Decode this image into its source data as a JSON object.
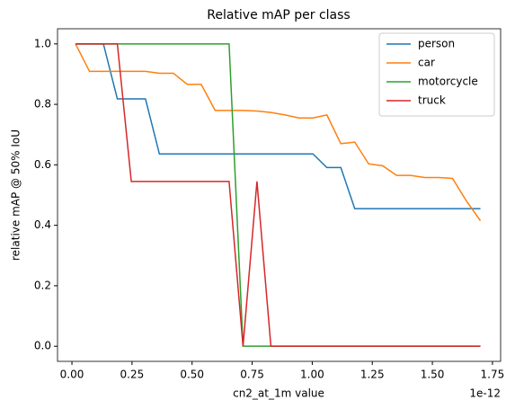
{
  "chart_data": {
    "type": "line",
    "title": "Relative mAP per class",
    "xlabel": "cn2_at_1m value",
    "ylabel": "relative mAP @ 50% IoU",
    "x_offset_text": "1e-12",
    "x": [
      0.015,
      0.073,
      0.131,
      0.189,
      0.247,
      0.306,
      0.364,
      0.422,
      0.48,
      0.538,
      0.596,
      0.654,
      0.712,
      0.77,
      0.828,
      0.887,
      0.945,
      1.003,
      1.061,
      1.119,
      1.177,
      1.235,
      1.293,
      1.351,
      1.409,
      1.468,
      1.526,
      1.584,
      1.642,
      1.7
    ],
    "series": [
      {
        "name": "person",
        "color": "#1f77b4",
        "values": [
          1,
          1,
          1,
          0.818,
          0.818,
          0.818,
          0.636,
          0.636,
          0.636,
          0.636,
          0.636,
          0.636,
          0.636,
          0.636,
          0.636,
          0.636,
          0.636,
          0.636,
          0.591,
          0.591,
          0.455,
          0.455,
          0.455,
          0.455,
          0.455,
          0.455,
          0.455,
          0.455,
          0.455,
          0.455
        ]
      },
      {
        "name": "car",
        "color": "#ff7f0e",
        "values": [
          1,
          0.909,
          0.909,
          0.909,
          0.909,
          0.909,
          0.903,
          0.903,
          0.866,
          0.866,
          0.78,
          0.78,
          0.78,
          0.778,
          0.773,
          0.765,
          0.755,
          0.755,
          0.765,
          0.67,
          0.675,
          0.603,
          0.597,
          0.565,
          0.565,
          0.558,
          0.558,
          0.555,
          0.48,
          0.415
        ]
      },
      {
        "name": "motorcycle",
        "color": "#2ca02c",
        "values": [
          1,
          1,
          1,
          1,
          1,
          1,
          1,
          1,
          1,
          1,
          1,
          1,
          0,
          0,
          0,
          0,
          0,
          0,
          0,
          0,
          0,
          0,
          0,
          0,
          0,
          0,
          0,
          0,
          0,
          0
        ]
      },
      {
        "name": "truck",
        "color": "#d62728",
        "values": [
          1,
          1,
          1,
          1,
          0.545,
          0.545,
          0.545,
          0.545,
          0.545,
          0.545,
          0.545,
          0.545,
          0,
          0.545,
          0,
          0,
          0,
          0,
          0,
          0,
          0,
          0,
          0,
          0,
          0,
          0,
          0,
          0,
          0,
          0
        ]
      }
    ],
    "xlim": [
      -0.06,
      1.784
    ],
    "ylim": [
      -0.05,
      1.05
    ],
    "xticks": [
      {
        "value": 0,
        "label": "0.00"
      },
      {
        "value": 0.25,
        "label": "0.25"
      },
      {
        "value": 0.5,
        "label": "0.50"
      },
      {
        "value": 0.75,
        "label": "0.75"
      },
      {
        "value": 1,
        "label": "1.00"
      },
      {
        "value": 1.25,
        "label": "1.25"
      },
      {
        "value": 1.5,
        "label": "1.50"
      },
      {
        "value": 1.75,
        "label": "1.75"
      }
    ],
    "yticks": [
      {
        "value": 0,
        "label": "0.0"
      },
      {
        "value": 0.2,
        "label": "0.2"
      },
      {
        "value": 0.4,
        "label": "0.4"
      },
      {
        "value": 0.6,
        "label": "0.6"
      },
      {
        "value": 0.8,
        "label": "0.8"
      },
      {
        "value": 1,
        "label": "1.0"
      }
    ],
    "legend": "upper right"
  }
}
